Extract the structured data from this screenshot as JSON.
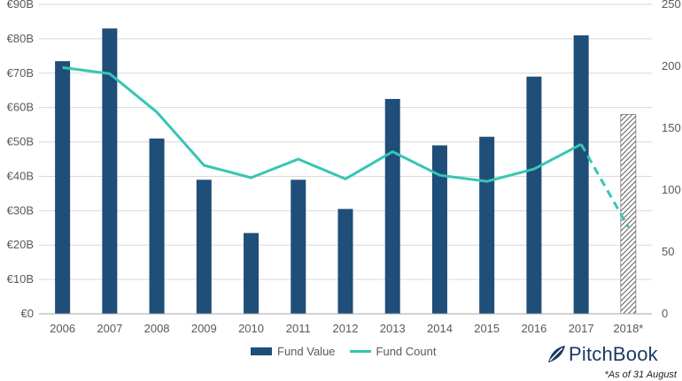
{
  "chart_data": {
    "type": "bar",
    "categories": [
      "2006",
      "2007",
      "2008",
      "2009",
      "2010",
      "2011",
      "2012",
      "2013",
      "2014",
      "2015",
      "2016",
      "2017",
      "2018*"
    ],
    "series": [
      {
        "name": "Fund Value",
        "axis": "left",
        "type": "bar",
        "values": [
          73.5,
          83,
          51,
          39,
          23.5,
          39,
          30.5,
          62.5,
          49,
          51.5,
          69,
          81,
          58
        ],
        "estimated_last": true
      },
      {
        "name": "Fund Count",
        "axis": "right",
        "type": "line",
        "values": [
          199,
          194,
          163,
          120,
          110,
          125,
          109,
          131,
          112,
          107,
          117,
          137,
          70
        ],
        "dashed_last_segment": true
      }
    ],
    "left_axis": {
      "min": 0,
      "max": 90,
      "step": 10,
      "labels": [
        "€0",
        "€10B",
        "€20B",
        "€30B",
        "€40B",
        "€50B",
        "€60B",
        "€70B",
        "€80B",
        "€90B"
      ]
    },
    "right_axis": {
      "min": 0,
      "max": 250,
      "step": 50,
      "labels": [
        "0",
        "50",
        "100",
        "150",
        "200",
        "250"
      ]
    },
    "grid": true,
    "legend_position": "bottom",
    "colors": {
      "bar": "#1f4e79",
      "line": "#35c6b4",
      "hatch": "#333333",
      "grid": "#d9d9d9",
      "axis": "#a6a6a6"
    }
  },
  "legend": {
    "fund_value": "Fund Value",
    "fund_count": "Fund Count"
  },
  "branding": {
    "logo_text": "PitchBook",
    "logo_icon": "pitchbook-leaf-icon"
  },
  "footnote": "*As of 31 August"
}
